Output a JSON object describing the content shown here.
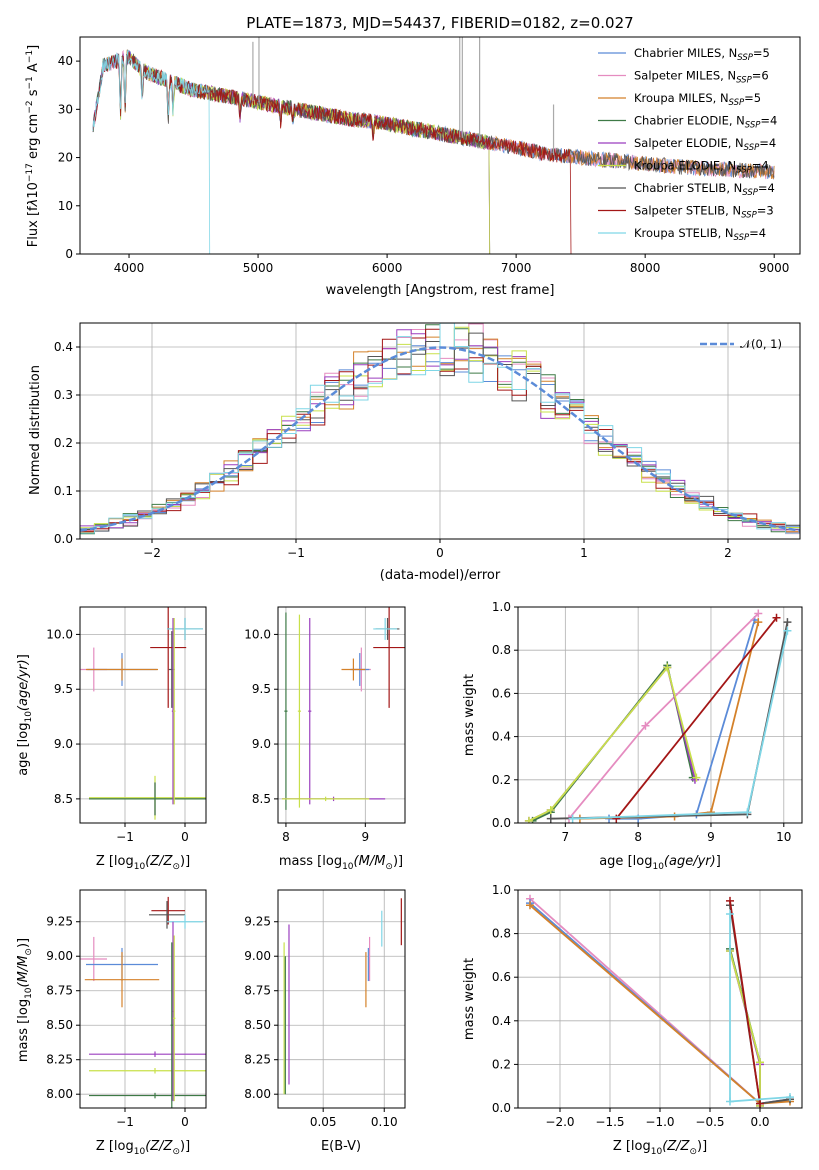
{
  "chart_data": [
    {
      "id": "spectrum",
      "type": "line",
      "title": "PLATE=1873, MJD=54437, FIBERID=0182, z=0.027",
      "xlabel": "wavelength [Angstrom, rest frame]",
      "ylabel": "Flux [f_λ10^-17 erg cm^-2 s^-1 A^-1]",
      "xlim": [
        3620,
        9200
      ],
      "ylim": [
        0,
        45
      ],
      "xticks": [
        4000,
        5000,
        6000,
        7000,
        8000,
        9000
      ],
      "yticks": [
        0,
        10,
        20,
        30,
        40
      ],
      "legend_position": "upper right",
      "legend": [
        {
          "label": "Chabrier MILES, N",
          "sub": "SSP",
          "tail": "=5",
          "color": "#5b8bd8"
        },
        {
          "label": "Salpeter MILES, N",
          "sub": "SSP",
          "tail": "=6",
          "color": "#e58cc0"
        },
        {
          "label": "Kroupa MILES, N",
          "sub": "SSP",
          "tail": "=5",
          "color": "#d4812a"
        },
        {
          "label": "Chabrier ELODIE, N",
          "sub": "SSP",
          "tail": "=4",
          "color": "#3e7a46"
        },
        {
          "label": "Salpeter ELODIE, N",
          "sub": "SSP",
          "tail": "=4",
          "color": "#9b3fbf"
        },
        {
          "label": "Kroupa ELODIE, N",
          "sub": "SSP",
          "tail": "=4",
          "color": "#c8e04a"
        },
        {
          "label": "Chabrier STELIB, N",
          "sub": "SSP",
          "tail": "=4",
          "color": "#555555"
        },
        {
          "label": "Salpeter STELIB, N",
          "sub": "SSP",
          "tail": "=3",
          "color": "#a31616"
        },
        {
          "label": "Kroupa STELIB, N",
          "sub": "SSP",
          "tail": "=4",
          "color": "#7fd6e6"
        }
      ],
      "continuum": [
        [
          3720,
          26
        ],
        [
          3800,
          39
        ],
        [
          3900,
          40
        ],
        [
          4000,
          41
        ],
        [
          4100,
          38
        ],
        [
          4200,
          37
        ],
        [
          4300,
          36
        ],
        [
          4500,
          34
        ],
        [
          4700,
          33
        ],
        [
          4900,
          32
        ],
        [
          5100,
          31
        ],
        [
          5300,
          30
        ],
        [
          5500,
          29
        ],
        [
          5700,
          28
        ],
        [
          5900,
          27.5
        ],
        [
          6100,
          26.5
        ],
        [
          6300,
          25.5
        ],
        [
          6500,
          24.5
        ],
        [
          6700,
          23.5
        ],
        [
          6900,
          22.5
        ],
        [
          7100,
          21.5
        ],
        [
          7300,
          20.5
        ],
        [
          7500,
          20
        ],
        [
          7700,
          19.5
        ],
        [
          7900,
          19
        ],
        [
          8100,
          18.5
        ],
        [
          8300,
          18
        ],
        [
          8500,
          17.7
        ],
        [
          8700,
          17.4
        ],
        [
          8900,
          17.2
        ],
        [
          9000,
          17
        ]
      ]
    },
    {
      "id": "residuals",
      "type": "histogram",
      "xlabel": "(data-model)/error",
      "ylabel": "Normed distribution",
      "xlim": [
        -2.5,
        2.5
      ],
      "ylim": [
        0,
        0.45
      ],
      "xticks": [
        -2,
        -1,
        0,
        1,
        2
      ],
      "yticks": [
        0.0,
        0.1,
        0.2,
        0.3,
        0.4
      ],
      "legend": "𝒩(0, 1)",
      "legend_position": "upper right",
      "reference_curve": "normal(0,1)",
      "reference_color": "#5b8bd8"
    },
    {
      "id": "age-vs-Z",
      "type": "errorbar",
      "xlabel_main": "Z [log",
      "xlabel_sub": "10",
      "xlabel_tail": "(Z/Z",
      "xlabel_end": ")]",
      "ylabel": "age  [log10(age/yr)]",
      "xlim": [
        -1.75,
        0.35
      ],
      "ylim": [
        8.28,
        10.25
      ],
      "xticks": [
        -1,
        0
      ],
      "yticks": [
        8.5,
        9.0,
        9.5,
        10.0
      ],
      "points": [
        {
          "color": "#e58cc0",
          "x": -1.52,
          "xerr": 0.22,
          "y": 9.68,
          "yerr": 0.2
        },
        {
          "color": "#5b8bd8",
          "x": -1.05,
          "xerr": 0.58,
          "y": 9.68,
          "yerr": 0.15
        },
        {
          "color": "#d4812a",
          "x": -1.05,
          "xerr": 0.6,
          "y": 9.68,
          "yerr": 0.1
        },
        {
          "color": "#555555",
          "x": -0.22,
          "xerr": 0.05,
          "y": 9.68,
          "yerr": 0.35
        },
        {
          "color": "#a31616",
          "x": -0.28,
          "xerr": 0.3,
          "y": 9.88,
          "yerr": 0.55
        },
        {
          "color": "#555555",
          "x": 0,
          "xerr": 0.3,
          "y": 10.05,
          "yerr": 0.1
        },
        {
          "color": "#7fd6e6",
          "x": 0,
          "xerr": 0.3,
          "y": 10.05,
          "yerr": 0.1
        },
        {
          "color": "#9b3fbf",
          "x": -0.5,
          "xerr": 1.1,
          "y": 8.5,
          "yerr": 0.15
        },
        {
          "color": "#c8e04a",
          "x": -0.5,
          "xerr": 1.1,
          "y": 8.51,
          "yerr": 0.2
        },
        {
          "color": "#3e7a46",
          "x": -0.5,
          "xerr": 1.1,
          "y": 8.5,
          "yerr": 0.15
        },
        {
          "color": "#9b3fbf",
          "x": -0.2,
          "xerr": 0.02,
          "y": 9.3,
          "yerr": 0.85
        },
        {
          "color": "#c8e04a",
          "x": -0.18,
          "xerr": 0.02,
          "y": 9.3,
          "yerr": 0.85
        }
      ]
    },
    {
      "id": "age-vs-mass",
      "type": "errorbar",
      "xlabel_main": "mass [log",
      "xlabel_sub": "10",
      "xlabel_tail": "(M/M",
      "xlabel_end": ")]",
      "xlim": [
        7.9,
        9.5
      ],
      "ylim": [
        8.28,
        10.25
      ],
      "xticks": [
        8,
        9
      ],
      "yticks": [
        8.5,
        9.0,
        9.5,
        10.0
      ],
      "points": [
        {
          "color": "#e58cc0",
          "x": 8.95,
          "xerr": 0.12,
          "y": 9.68,
          "yerr": 0.2
        },
        {
          "color": "#5b8bd8",
          "x": 8.93,
          "xerr": 0.12,
          "y": 9.68,
          "yerr": 0.15
        },
        {
          "color": "#d4812a",
          "x": 8.85,
          "xerr": 0.15,
          "y": 9.68,
          "yerr": 0.1
        },
        {
          "color": "#a31616",
          "x": 9.3,
          "xerr": 0.2,
          "y": 9.88,
          "yerr": 0.55
        },
        {
          "color": "#555555",
          "x": 9.28,
          "xerr": 0.15,
          "y": 10.05,
          "yerr": 0.1
        },
        {
          "color": "#7fd6e6",
          "x": 9.25,
          "xerr": 0.15,
          "y": 10.05,
          "yerr": 0.1
        },
        {
          "color": "#3e7a46",
          "x": 8,
          "xerr": 0.02,
          "y": 9.3,
          "yerr": 0.9
        },
        {
          "color": "#c8e04a",
          "x": 8.17,
          "xerr": 0.02,
          "y": 9.3,
          "yerr": 0.88
        },
        {
          "color": "#9b3fbf",
          "x": 8.3,
          "xerr": 0.02,
          "y": 9.3,
          "yerr": 0.85
        },
        {
          "color": "#9b3fbf",
          "x": 8.6,
          "xerr": 0.65,
          "y": 8.5,
          "yerr": 0.02
        },
        {
          "color": "#c8e04a",
          "x": 8.5,
          "xerr": 0.55,
          "y": 8.5,
          "yerr": 0.02
        }
      ]
    },
    {
      "id": "massweight-vs-age",
      "type": "line",
      "ylabel": "mass weight",
      "xlabel_main": "age  [log",
      "xlabel_sub": "10",
      "xlabel_tail": "(age/yr)]",
      "xlim": [
        6.35,
        10.25
      ],
      "ylim": [
        0,
        1
      ],
      "xticks": [
        7,
        8,
        9,
        10
      ],
      "yticks": [
        0.0,
        0.2,
        0.4,
        0.6,
        0.8,
        1.0
      ],
      "series": [
        {
          "color": "#5b8bd8",
          "x": [
            7.6,
            8.0,
            8.8,
            9.6
          ],
          "y": [
            0.02,
            0.02,
            0.04,
            0.94
          ]
        },
        {
          "color": "#e58cc0",
          "x": [
            7.05,
            8.1,
            9.65
          ],
          "y": [
            0.02,
            0.45,
            0.97
          ]
        },
        {
          "color": "#d4812a",
          "x": [
            7.2,
            8.5,
            9.0,
            9.65
          ],
          "y": [
            0.02,
            0.03,
            0.05,
            0.93
          ]
        },
        {
          "color": "#3e7a46",
          "x": [
            6.55,
            6.8,
            8.4,
            8.75
          ],
          "y": [
            0.01,
            0.05,
            0.73,
            0.21
          ]
        },
        {
          "color": "#9b3fbf",
          "x": [
            6.5,
            6.8,
            8.4,
            8.78
          ],
          "y": [
            0.01,
            0.06,
            0.72,
            0.2
          ]
        },
        {
          "color": "#c8e04a",
          "x": [
            6.5,
            6.8,
            8.4,
            8.8
          ],
          "y": [
            0.01,
            0.06,
            0.72,
            0.21
          ]
        },
        {
          "color": "#555555",
          "x": [
            6.8,
            9.5,
            10.05
          ],
          "y": [
            0.02,
            0.04,
            0.93
          ]
        },
        {
          "color": "#a31616",
          "x": [
            7.7,
            9.9
          ],
          "y": [
            0.02,
            0.95
          ]
        },
        {
          "color": "#7fd6e6",
          "x": [
            7.1,
            9.5,
            10.05
          ],
          "y": [
            0.02,
            0.05,
            0.89
          ]
        }
      ]
    },
    {
      "id": "mass-vs-Z",
      "type": "errorbar",
      "ylabel": "mass [log10(M/M⊙)]",
      "xlabel_main": "Z [log",
      "xlabel_sub": "10",
      "xlabel_tail": "(Z/Z",
      "xlabel_end": ")]",
      "xlim": [
        -1.75,
        0.35
      ],
      "ylim": [
        7.9,
        9.48
      ],
      "xticks": [
        -1,
        0
      ],
      "yticks": [
        8.0,
        8.25,
        8.5,
        8.75,
        9.0,
        9.25
      ],
      "points": [
        {
          "color": "#e58cc0",
          "x": -1.52,
          "xerr": 0.22,
          "y": 8.98,
          "yerr": 0.16
        },
        {
          "color": "#5b8bd8",
          "x": -1.05,
          "xerr": 0.6,
          "y": 8.94,
          "yerr": 0.12
        },
        {
          "color": "#d4812a",
          "x": -1.05,
          "xerr": 0.62,
          "y": 8.83,
          "yerr": 0.2
        },
        {
          "color": "#9b3fbf",
          "x": -0.5,
          "xerr": 1.1,
          "y": 8.29,
          "yerr": 0.02
        },
        {
          "color": "#c8e04a",
          "x": -0.5,
          "xerr": 1.1,
          "y": 8.17,
          "yerr": 0.02
        },
        {
          "color": "#3e7a46",
          "x": -0.5,
          "xerr": 1.1,
          "y": 7.99,
          "yerr": 0.02
        },
        {
          "color": "#a31616",
          "x": -0.28,
          "xerr": 0.28,
          "y": 9.33,
          "yerr": 0.1
        },
        {
          "color": "#555555",
          "x": -0.3,
          "xerr": 0.3,
          "y": 9.3,
          "yerr": 0.1
        },
        {
          "color": "#7fd6e6",
          "x": 0,
          "xerr": 0.3,
          "y": 9.25,
          "yerr": 0.05
        },
        {
          "color": "#9b3fbf",
          "x": -0.2,
          "xerr": 0.02,
          "y": 8.6,
          "yerr": 0.65
        },
        {
          "color": "#c8e04a",
          "x": -0.18,
          "xerr": 0.02,
          "y": 8.55,
          "yerr": 0.6
        },
        {
          "color": "#3e7a46",
          "x": -0.22,
          "xerr": 0.02,
          "y": 8.5,
          "yerr": 0.6
        }
      ]
    },
    {
      "id": "mass-vs-EBV",
      "type": "errorbar",
      "xlabel": "E(B-V)",
      "xlim": [
        0.013,
        0.117
      ],
      "ylim": [
        7.9,
        9.48
      ],
      "xticks": [
        0.05,
        0.1
      ],
      "yticks": [
        8.0,
        8.25,
        8.5,
        8.75,
        9.0,
        9.25
      ],
      "points": [
        {
          "color": "#c8e04a",
          "x": 0.018,
          "xerr": 0,
          "y": 8.55,
          "yerr": 0.55
        },
        {
          "color": "#3e7a46",
          "x": 0.019,
          "xerr": 0,
          "y": 8.5,
          "yerr": 0.5
        },
        {
          "color": "#9b3fbf",
          "x": 0.022,
          "xerr": 0,
          "y": 8.65,
          "yerr": 0.58
        },
        {
          "color": "#d4812a",
          "x": 0.085,
          "xerr": 0,
          "y": 8.83,
          "yerr": 0.2
        },
        {
          "color": "#5b8bd8",
          "x": 0.087,
          "xerr": 0,
          "y": 8.94,
          "yerr": 0.12
        },
        {
          "color": "#e58cc0",
          "x": 0.088,
          "xerr": 0,
          "y": 8.98,
          "yerr": 0.16
        },
        {
          "color": "#7fd6e6",
          "x": 0.098,
          "xerr": 0,
          "y": 9.2,
          "yerr": 0.13
        },
        {
          "color": "#a31616",
          "x": 0.114,
          "xerr": 0,
          "y": 9.25,
          "yerr": 0.17
        }
      ]
    },
    {
      "id": "massweight-vs-Z",
      "type": "line",
      "ylabel": "mass weight",
      "xlabel_main": "Z [log",
      "xlabel_sub": "10",
      "xlabel_tail": "(Z/Z",
      "xlabel_end": ")]",
      "xlim": [
        -2.42,
        0.42
      ],
      "ylim": [
        0,
        1
      ],
      "xticks": [
        -2.0,
        -1.5,
        -1.0,
        -0.5,
        0.0
      ],
      "yticks": [
        0.0,
        0.2,
        0.4,
        0.6,
        0.8,
        1.0
      ],
      "series": [
        {
          "color": "#e58cc0",
          "x": [
            -2.3,
            0,
            0.3
          ],
          "y": [
            0.96,
            0.02,
            0.04
          ]
        },
        {
          "color": "#5b8bd8",
          "x": [
            -2.3,
            0,
            0.3
          ],
          "y": [
            0.94,
            0.02,
            0.04
          ]
        },
        {
          "color": "#d4812a",
          "x": [
            -2.3,
            0,
            0.3
          ],
          "y": [
            0.93,
            0.02,
            0.03
          ]
        },
        {
          "color": "#3e7a46",
          "x": [
            -0.3,
            0,
            0
          ],
          "y": [
            0.73,
            0.21,
            0.01
          ]
        },
        {
          "color": "#9b3fbf",
          "x": [
            -0.3,
            0,
            0
          ],
          "y": [
            0.72,
            0.2,
            0.01
          ]
        },
        {
          "color": "#c8e04a",
          "x": [
            -0.3,
            0,
            0
          ],
          "y": [
            0.72,
            0.21,
            0.01
          ]
        },
        {
          "color": "#555555",
          "x": [
            -0.3,
            0,
            0.3
          ],
          "y": [
            0.93,
            0.02,
            0.04
          ]
        },
        {
          "color": "#a31616",
          "x": [
            -0.3,
            0
          ],
          "y": [
            0.95,
            0.02
          ]
        },
        {
          "color": "#7fd6e6",
          "x": [
            -0.3,
            -0.3,
            0.3
          ],
          "y": [
            0.89,
            0.03,
            0.05
          ]
        }
      ]
    }
  ]
}
